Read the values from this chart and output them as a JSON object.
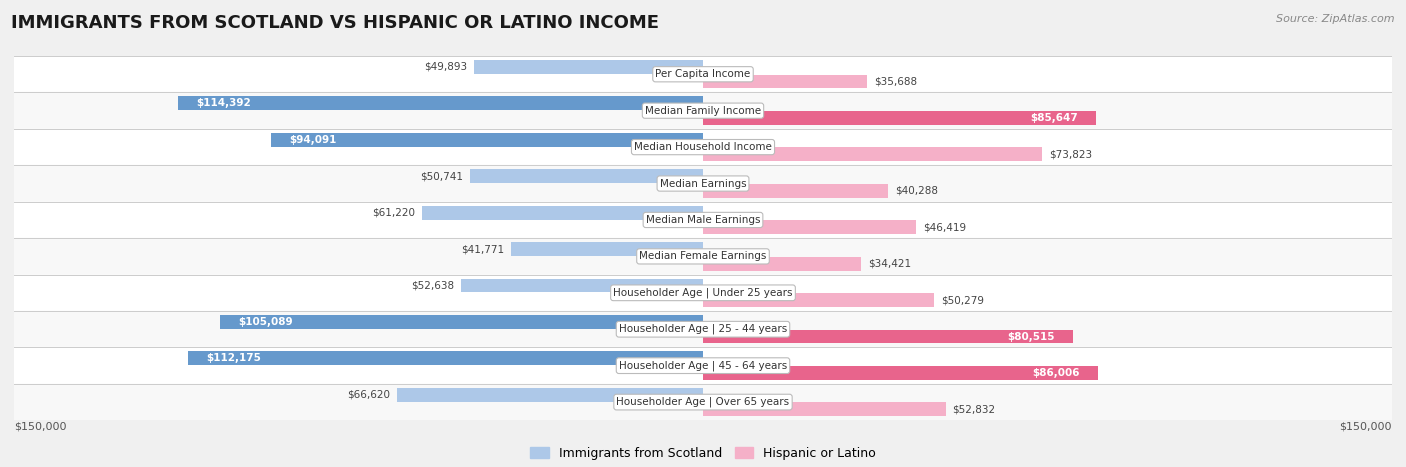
{
  "title": "IMMIGRANTS FROM SCOTLAND VS HISPANIC OR LATINO INCOME",
  "source": "Source: ZipAtlas.com",
  "categories": [
    "Per Capita Income",
    "Median Family Income",
    "Median Household Income",
    "Median Earnings",
    "Median Male Earnings",
    "Median Female Earnings",
    "Householder Age | Under 25 years",
    "Householder Age | 25 - 44 years",
    "Householder Age | 45 - 64 years",
    "Householder Age | Over 65 years"
  ],
  "scotland_values": [
    49893,
    114392,
    94091,
    50741,
    61220,
    41771,
    52638,
    105089,
    112175,
    66620
  ],
  "hispanic_values": [
    35688,
    85647,
    73823,
    40288,
    46419,
    34421,
    50279,
    80515,
    86006,
    52832
  ],
  "scotland_color_light": "#adc8e8",
  "scotland_color_dark": "#6699cc",
  "hispanic_color_light": "#f5b0c8",
  "hispanic_color_dark": "#e8648c",
  "scotland_label": "Immigrants from Scotland",
  "hispanic_label": "Hispanic or Latino",
  "max_val": 150000,
  "bg_color": "#f0f0f0",
  "row_color_even": "#ffffff",
  "row_color_odd": "#f8f8f8",
  "title_fontsize": 13,
  "source_fontsize": 8,
  "label_fontsize": 7.5,
  "value_fontsize": 7.5
}
